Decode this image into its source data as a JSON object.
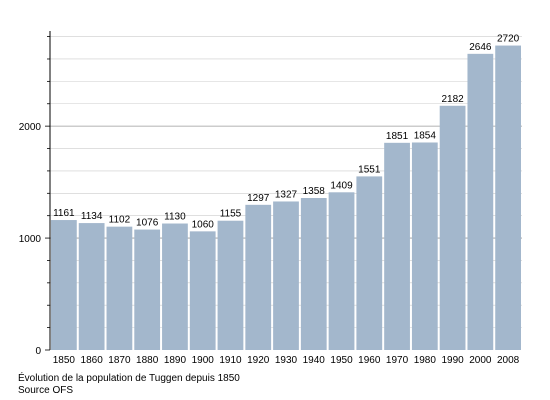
{
  "chart_data": {
    "type": "bar",
    "categories": [
      "1850",
      "1860",
      "1870",
      "1880",
      "1890",
      "1900",
      "1910",
      "1920",
      "1930",
      "1940",
      "1950",
      "1960",
      "1970",
      "1980",
      "1990",
      "2000",
      "2008"
    ],
    "values": [
      1161,
      1134,
      1102,
      1076,
      1130,
      1060,
      1155,
      1297,
      1327,
      1358,
      1409,
      1551,
      1851,
      1854,
      2182,
      2646,
      2720
    ],
    "ylim": [
      0,
      2850
    ],
    "yticks": [
      0,
      1000,
      2000
    ],
    "yminor_step": 200,
    "grid": true,
    "bar_color": "#a3b7cc",
    "gridline_color": "#cccccc",
    "major_gridline_color": "#999999",
    "data_labels": true
  },
  "caption": {
    "line1": "Évolution de la population de Tuggen depuis 1850",
    "line2": "Source OFS"
  }
}
